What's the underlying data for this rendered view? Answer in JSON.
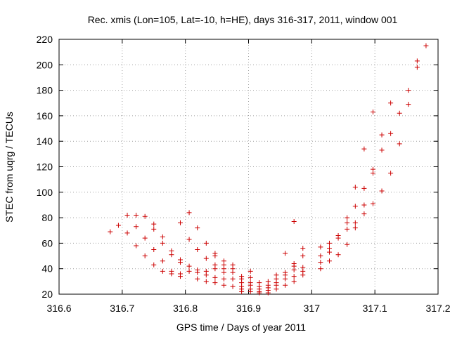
{
  "chart_data": {
    "type": "scatter",
    "title": "Rec. xmis (Lon=105, Lat=-10, h=HE), days 316-317, 2011, window 001",
    "xlabel": "GPS time / Days of year 2011",
    "ylabel": "STEC from uqrg / TECUs",
    "xlim": [
      316.6,
      317.2
    ],
    "ylim": [
      20,
      220
    ],
    "xticks": [
      "316.6",
      "316.7",
      "316.8",
      "316.9",
      "317",
      "317.1",
      "317.2"
    ],
    "yticks": [
      "20",
      "40",
      "60",
      "80",
      "100",
      "120",
      "140",
      "160",
      "180",
      "200",
      "220"
    ],
    "grid": true,
    "marker": "+",
    "series": [
      {
        "name": "STEC",
        "color": "#cc0000",
        "points": [
          [
            316.681,
            69
          ],
          [
            316.694,
            74
          ],
          [
            316.708,
            82
          ],
          [
            316.708,
            68
          ],
          [
            316.722,
            82
          ],
          [
            316.722,
            73
          ],
          [
            316.722,
            58
          ],
          [
            316.736,
            81
          ],
          [
            316.736,
            64
          ],
          [
            316.736,
            50
          ],
          [
            316.75,
            75
          ],
          [
            316.75,
            71
          ],
          [
            316.75,
            55
          ],
          [
            316.75,
            43
          ],
          [
            316.764,
            65
          ],
          [
            316.764,
            60
          ],
          [
            316.764,
            46
          ],
          [
            316.764,
            38
          ],
          [
            316.778,
            54
          ],
          [
            316.778,
            51
          ],
          [
            316.778,
            38
          ],
          [
            316.778,
            36
          ],
          [
            316.792,
            76
          ],
          [
            316.792,
            47
          ],
          [
            316.792,
            45
          ],
          [
            316.792,
            36
          ],
          [
            316.792,
            34
          ],
          [
            316.806,
            84
          ],
          [
            316.806,
            63
          ],
          [
            316.806,
            42
          ],
          [
            316.806,
            38
          ],
          [
            316.819,
            72
          ],
          [
            316.819,
            55
          ],
          [
            316.819,
            39
          ],
          [
            316.819,
            37
          ],
          [
            316.819,
            32
          ],
          [
            316.833,
            60
          ],
          [
            316.833,
            48
          ],
          [
            316.833,
            38
          ],
          [
            316.833,
            35
          ],
          [
            316.833,
            30
          ],
          [
            316.847,
            52
          ],
          [
            316.847,
            50
          ],
          [
            316.847,
            43
          ],
          [
            316.847,
            40
          ],
          [
            316.847,
            33
          ],
          [
            316.847,
            29
          ],
          [
            316.861,
            46
          ],
          [
            316.861,
            43
          ],
          [
            316.861,
            40
          ],
          [
            316.861,
            37
          ],
          [
            316.861,
            32
          ],
          [
            316.861,
            27
          ],
          [
            316.875,
            43
          ],
          [
            316.875,
            40
          ],
          [
            316.875,
            37
          ],
          [
            316.875,
            32
          ],
          [
            316.875,
            26
          ],
          [
            316.889,
            34
          ],
          [
            316.889,
            32
          ],
          [
            316.889,
            29
          ],
          [
            316.889,
            26
          ],
          [
            316.889,
            24
          ],
          [
            316.889,
            22
          ],
          [
            316.903,
            38
          ],
          [
            316.903,
            33
          ],
          [
            316.903,
            29
          ],
          [
            316.903,
            27
          ],
          [
            316.903,
            24
          ],
          [
            316.903,
            22
          ],
          [
            316.917,
            29
          ],
          [
            316.917,
            26
          ],
          [
            316.917,
            24
          ],
          [
            316.917,
            22
          ],
          [
            316.917,
            21
          ],
          [
            316.931,
            30
          ],
          [
            316.931,
            27
          ],
          [
            316.931,
            25
          ],
          [
            316.931,
            23
          ],
          [
            316.931,
            21
          ],
          [
            316.944,
            35
          ],
          [
            316.944,
            32
          ],
          [
            316.944,
            29
          ],
          [
            316.944,
            27
          ],
          [
            316.944,
            24
          ],
          [
            316.958,
            52
          ],
          [
            316.958,
            37
          ],
          [
            316.958,
            35
          ],
          [
            316.958,
            32
          ],
          [
            316.958,
            27
          ],
          [
            316.972,
            77
          ],
          [
            316.972,
            44
          ],
          [
            316.972,
            42
          ],
          [
            316.972,
            39
          ],
          [
            316.972,
            34
          ],
          [
            316.972,
            30
          ],
          [
            316.986,
            56
          ],
          [
            316.986,
            50
          ],
          [
            316.986,
            41
          ],
          [
            316.986,
            38
          ],
          [
            316.986,
            35
          ],
          [
            317.014,
            57
          ],
          [
            317.014,
            50
          ],
          [
            317.014,
            45
          ],
          [
            317.014,
            40
          ],
          [
            317.028,
            60
          ],
          [
            317.028,
            56
          ],
          [
            317.028,
            53
          ],
          [
            317.028,
            46
          ],
          [
            317.042,
            66
          ],
          [
            317.042,
            64
          ],
          [
            317.042,
            51
          ],
          [
            317.056,
            80
          ],
          [
            317.056,
            76
          ],
          [
            317.056,
            71
          ],
          [
            317.056,
            59
          ],
          [
            317.069,
            104
          ],
          [
            317.069,
            89
          ],
          [
            317.069,
            76
          ],
          [
            317.069,
            72
          ],
          [
            317.083,
            134
          ],
          [
            317.083,
            103
          ],
          [
            317.083,
            90
          ],
          [
            317.083,
            83
          ],
          [
            317.097,
            163
          ],
          [
            317.097,
            118
          ],
          [
            317.097,
            115
          ],
          [
            317.097,
            91
          ],
          [
            317.111,
            145
          ],
          [
            317.111,
            133
          ],
          [
            317.111,
            101
          ],
          [
            317.125,
            170
          ],
          [
            317.125,
            146
          ],
          [
            317.125,
            115
          ],
          [
            317.139,
            162
          ],
          [
            317.139,
            138
          ],
          [
            317.153,
            180
          ],
          [
            317.153,
            169
          ],
          [
            317.167,
            203
          ],
          [
            317.167,
            198
          ],
          [
            317.181,
            215
          ]
        ]
      }
    ]
  }
}
